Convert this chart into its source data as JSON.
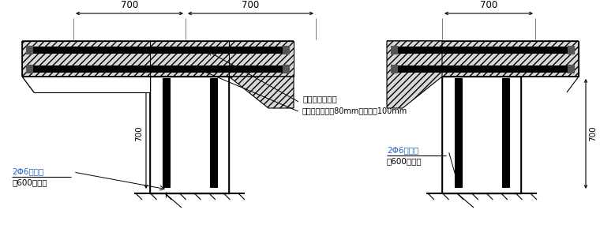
{
  "bg_color": "#ffffff",
  "line_color": "#000000",
  "hatch_color": "#aaaaaa",
  "text_color_black": "#1a1a1a",
  "text_color_blue": "#2060c0",
  "dim_color": "#444444",
  "annotation1": "采用结构胶植筋",
  "annotation2": "拉结筋植入深度80mm，配筋带100mm",
  "label1_line1": "2Φ6沿墙高",
  "label1_line2": "每600设一道",
  "label2_line1": "2Φ6沿墙高",
  "label2_line2": "每600设一道",
  "dim_700": "700"
}
